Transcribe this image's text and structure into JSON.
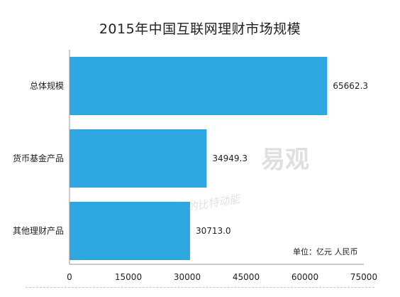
{
  "chart_data": {
    "type": "bar",
    "orientation": "horizontal",
    "title": "2015年中国互联网理财市场规模",
    "categories": [
      "总体规模",
      "货币基金产品",
      "其他理财产品"
    ],
    "values": [
      65662.3,
      34949.3,
      30713.0
    ],
    "value_labels": [
      "65662.3",
      "34949.3",
      "30713.0"
    ],
    "xlim": [
      0,
      75000
    ],
    "x_ticks": [
      0,
      15000,
      30000,
      45000,
      60000,
      75000
    ],
    "unit_note": "单位：亿元 人民币",
    "bar_color": "#2ea6e0",
    "grid": false
  },
  "watermark": {
    "logo_text": "易观",
    "tagline": "长的比特动能"
  }
}
